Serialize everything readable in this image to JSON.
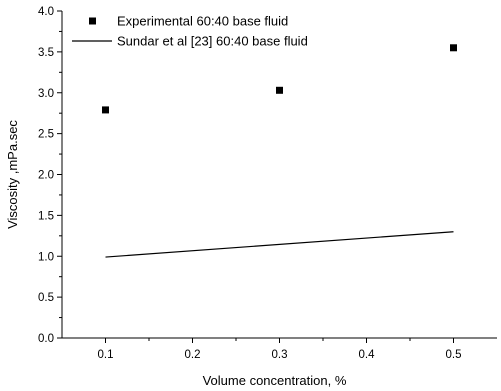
{
  "chart_data": {
    "type": "scatter",
    "title": "",
    "xlabel": "Volume concentration, %",
    "ylabel": "Viscosity ,mPa.sec",
    "xlim": [
      0.05,
      0.55
    ],
    "ylim": [
      0,
      4.0
    ],
    "xticks": [
      "0.1",
      "0.2",
      "0.3",
      "0.4",
      "0.5"
    ],
    "yticks": [
      "0.0",
      "0.5",
      "1.0",
      "1.5",
      "2.0",
      "2.5",
      "3.0",
      "3.5",
      "4.0"
    ],
    "grid": false,
    "legend_position": "top-left",
    "series": [
      {
        "name": "Experimental 60:40 base fluid",
        "kind": "scatter",
        "marker": "square",
        "color": "#000000",
        "x": [
          0.1,
          0.3,
          0.5
        ],
        "y": [
          2.79,
          3.03,
          3.55
        ]
      },
      {
        "name": "Sundar et al [23] 60:40 base fluid",
        "kind": "line",
        "color": "#000000",
        "x": [
          0.1,
          0.5
        ],
        "y": [
          0.99,
          1.3
        ]
      }
    ]
  }
}
